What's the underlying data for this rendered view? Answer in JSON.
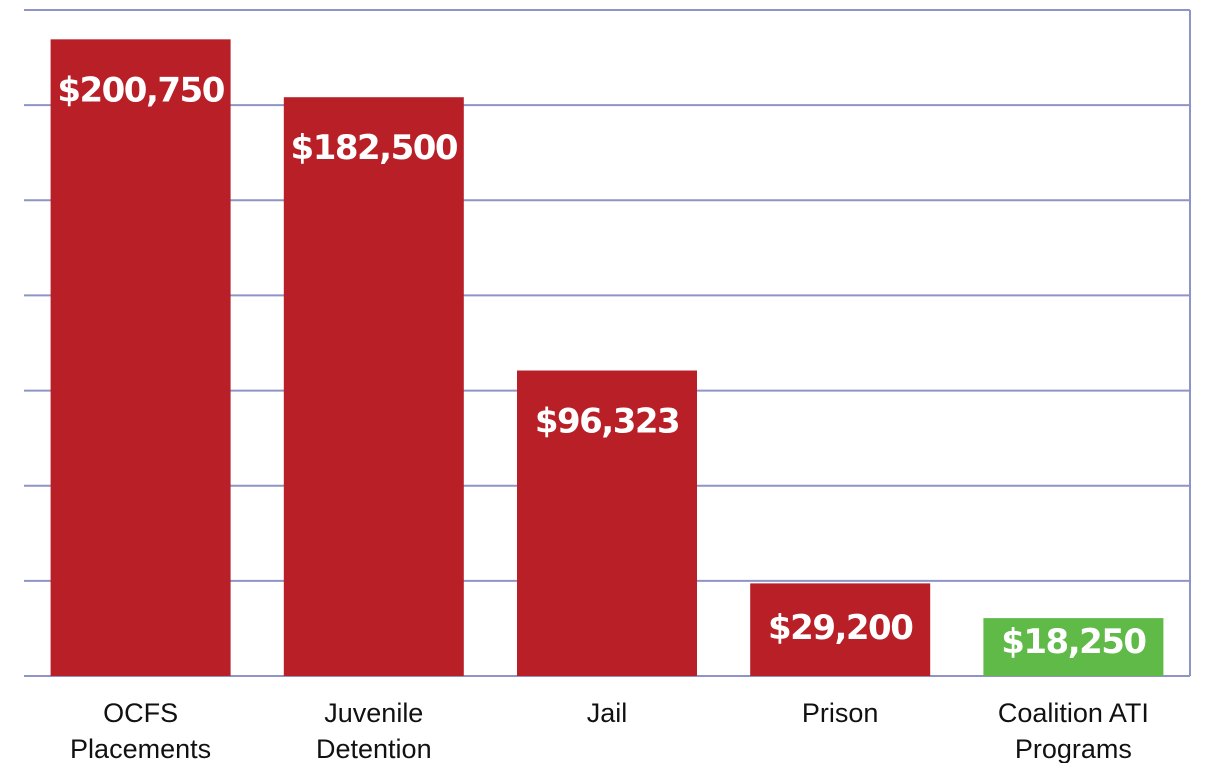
{
  "chart_data": {
    "type": "bar",
    "title": "",
    "xlabel": "",
    "ylabel": "",
    "ylim": [
      0,
      210000
    ],
    "grid": true,
    "categories": [
      [
        "OCFS",
        "Placements"
      ],
      [
        "Juvenile",
        "Detention"
      ],
      [
        "Jail"
      ],
      [
        "Prison"
      ],
      [
        "Coalition ATI",
        "Programs"
      ]
    ],
    "values": [
      200750,
      182500,
      96323,
      29200,
      18250
    ],
    "value_labels": [
      "$200,750",
      "$182,500",
      "$96,323",
      "$29,200",
      "$18,250"
    ],
    "bar_colors": [
      "#b81f27",
      "#b81f27",
      "#b81f27",
      "#b81f27",
      "#5fba47"
    ],
    "grid_color": "#8f94c6"
  }
}
